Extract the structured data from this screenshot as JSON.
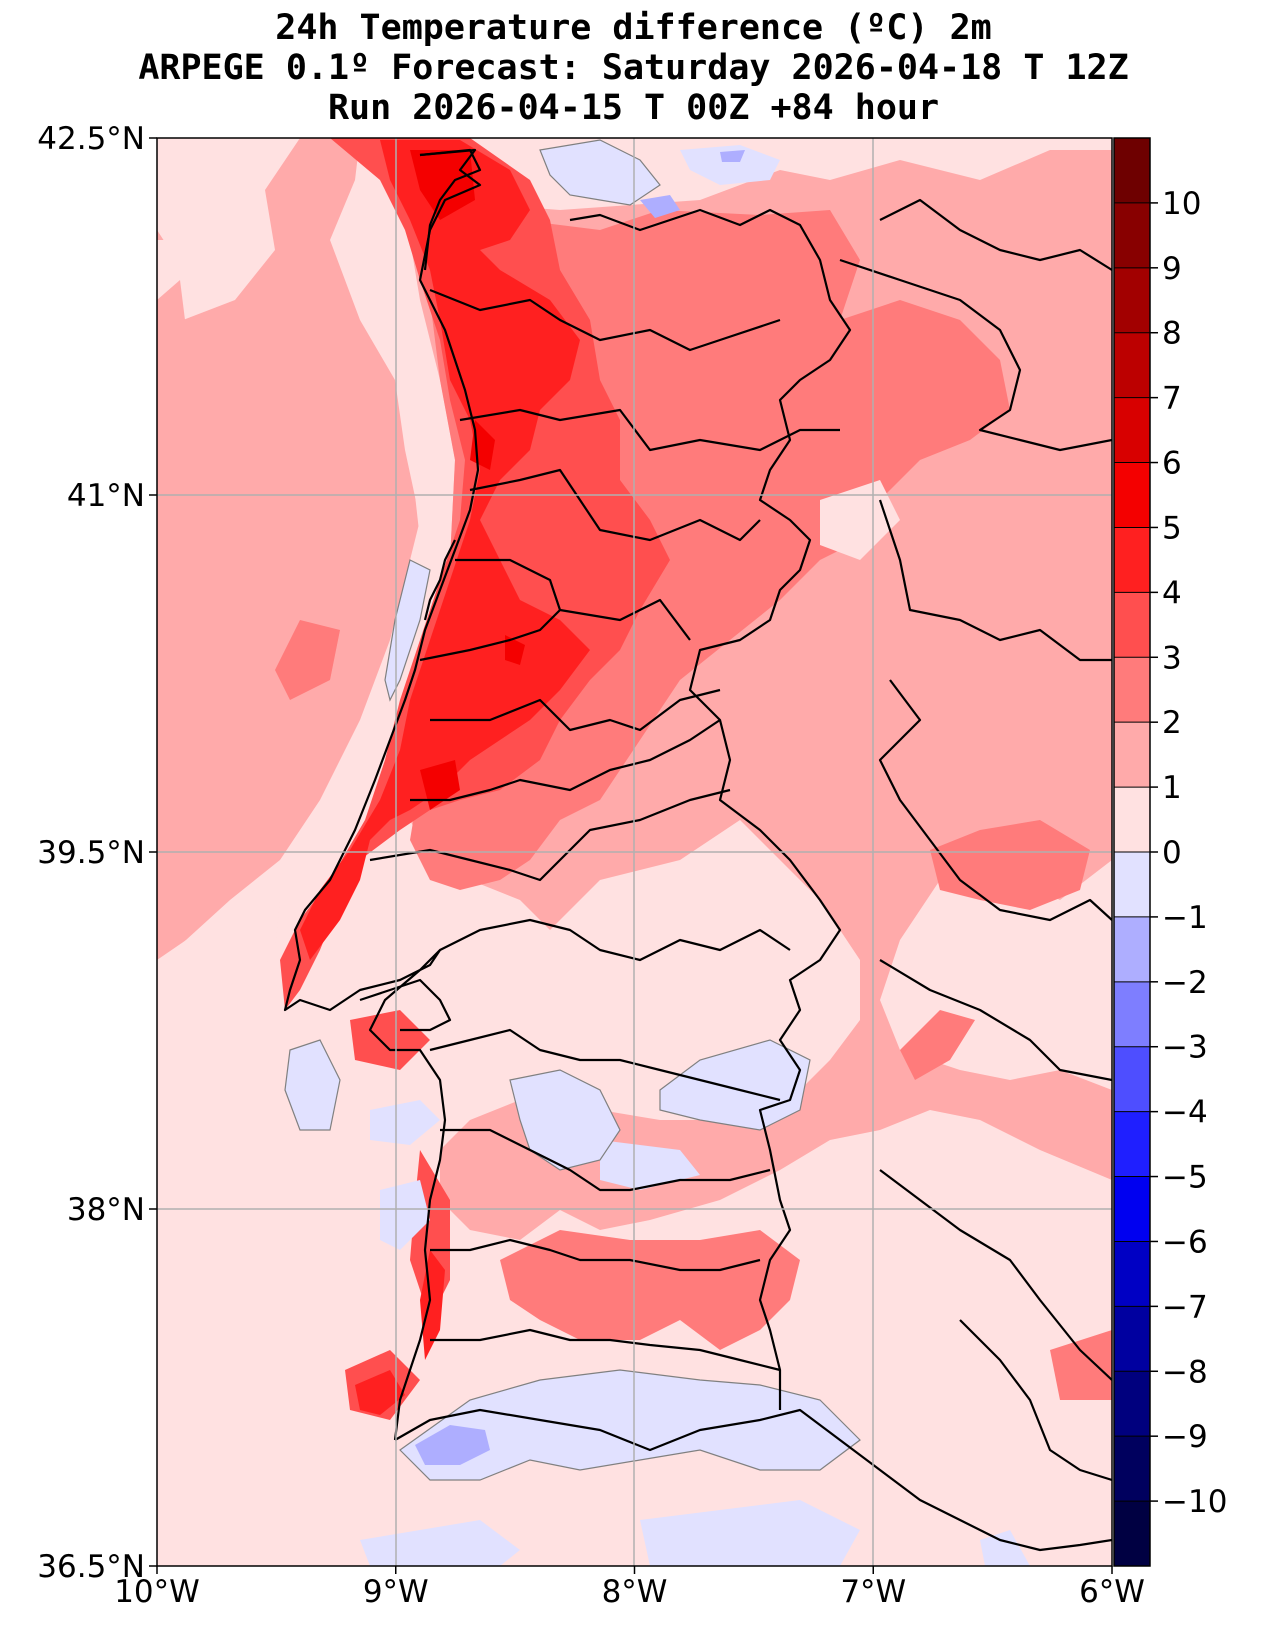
{
  "title": {
    "line1": "24h Temperature difference (ºC) 2m",
    "line2": "ARPEGE 0.1º Forecast: Saturday 2026-04-18 T 12Z",
    "line3": "Run 2026-04-15 T 00Z +84 hour"
  },
  "map": {
    "lon_range": [
      -10,
      -6
    ],
    "lat_range": [
      36.5,
      42.5
    ],
    "lat_ticks": [
      {
        "value": 42.5,
        "label": "42.5°N"
      },
      {
        "value": 41,
        "label": "41°N"
      },
      {
        "value": 39.5,
        "label": "39.5°N"
      },
      {
        "value": 38,
        "label": "38°N"
      },
      {
        "value": 36.5,
        "label": "36.5°N"
      }
    ],
    "lon_ticks": [
      {
        "value": -10,
        "label": "10°W"
      },
      {
        "value": -9,
        "label": "9°W"
      },
      {
        "value": -8,
        "label": "8°W"
      },
      {
        "value": -7,
        "label": "7°W"
      },
      {
        "value": -6,
        "label": "6°W"
      }
    ],
    "grid": true
  },
  "colorbar": {
    "min": -11,
    "max": 11,
    "labels": [
      "10",
      "9",
      "8",
      "7",
      "6",
      "5",
      "4",
      "3",
      "2",
      "1",
      "0",
      "−1",
      "−2",
      "−3",
      "−4",
      "−5",
      "−6",
      "−7",
      "−8",
      "−9",
      "−10"
    ],
    "label_values": [
      10,
      9,
      8,
      7,
      6,
      5,
      4,
      3,
      2,
      1,
      0,
      -1,
      -2,
      -3,
      -4,
      -5,
      -6,
      -7,
      -8,
      -9,
      -10
    ],
    "bands": [
      {
        "from": 10,
        "to": 11,
        "color": "#6e0000"
      },
      {
        "from": 9,
        "to": 10,
        "color": "#880000"
      },
      {
        "from": 8,
        "to": 9,
        "color": "#a20000"
      },
      {
        "from": 7,
        "to": 8,
        "color": "#bc0000"
      },
      {
        "from": 6,
        "to": 7,
        "color": "#d80000"
      },
      {
        "from": 5,
        "to": 6,
        "color": "#f40000"
      },
      {
        "from": 4,
        "to": 5,
        "color": "#ff2020"
      },
      {
        "from": 3,
        "to": 4,
        "color": "#ff4f4f"
      },
      {
        "from": 2,
        "to": 3,
        "color": "#ff7b7b"
      },
      {
        "from": 1,
        "to": 2,
        "color": "#ffaaaa"
      },
      {
        "from": 0,
        "to": 1,
        "color": "#ffe1e1"
      },
      {
        "from": -1,
        "to": 0,
        "color": "#e1e1ff"
      },
      {
        "from": -2,
        "to": -1,
        "color": "#aeaeff"
      },
      {
        "from": -3,
        "to": -2,
        "color": "#7e7eff"
      },
      {
        "from": -4,
        "to": -3,
        "color": "#4e4eff"
      },
      {
        "from": -5,
        "to": -4,
        "color": "#1f1fff"
      },
      {
        "from": -6,
        "to": -5,
        "color": "#0000f0"
      },
      {
        "from": -7,
        "to": -6,
        "color": "#0000c4"
      },
      {
        "from": -8,
        "to": -7,
        "color": "#0000a0"
      },
      {
        "from": -9,
        "to": -8,
        "color": "#00007e"
      },
      {
        "from": -10,
        "to": -9,
        "color": "#00005e"
      },
      {
        "from": -11,
        "to": -10,
        "color": "#000042"
      }
    ]
  },
  "colors": {
    "ocean_base": "#ffe1e1",
    "level_1_2": "#ffaaaa",
    "level_2_3": "#ff7b7b",
    "level_3_4": "#ff4f4f",
    "level_4_5": "#ff2020",
    "level_5_6": "#f40000",
    "level_neg_0_1": "#e1e1ff",
    "level_neg_1_2": "#aeaeff",
    "border": "#000000",
    "grid": "#b0b0b0"
  }
}
